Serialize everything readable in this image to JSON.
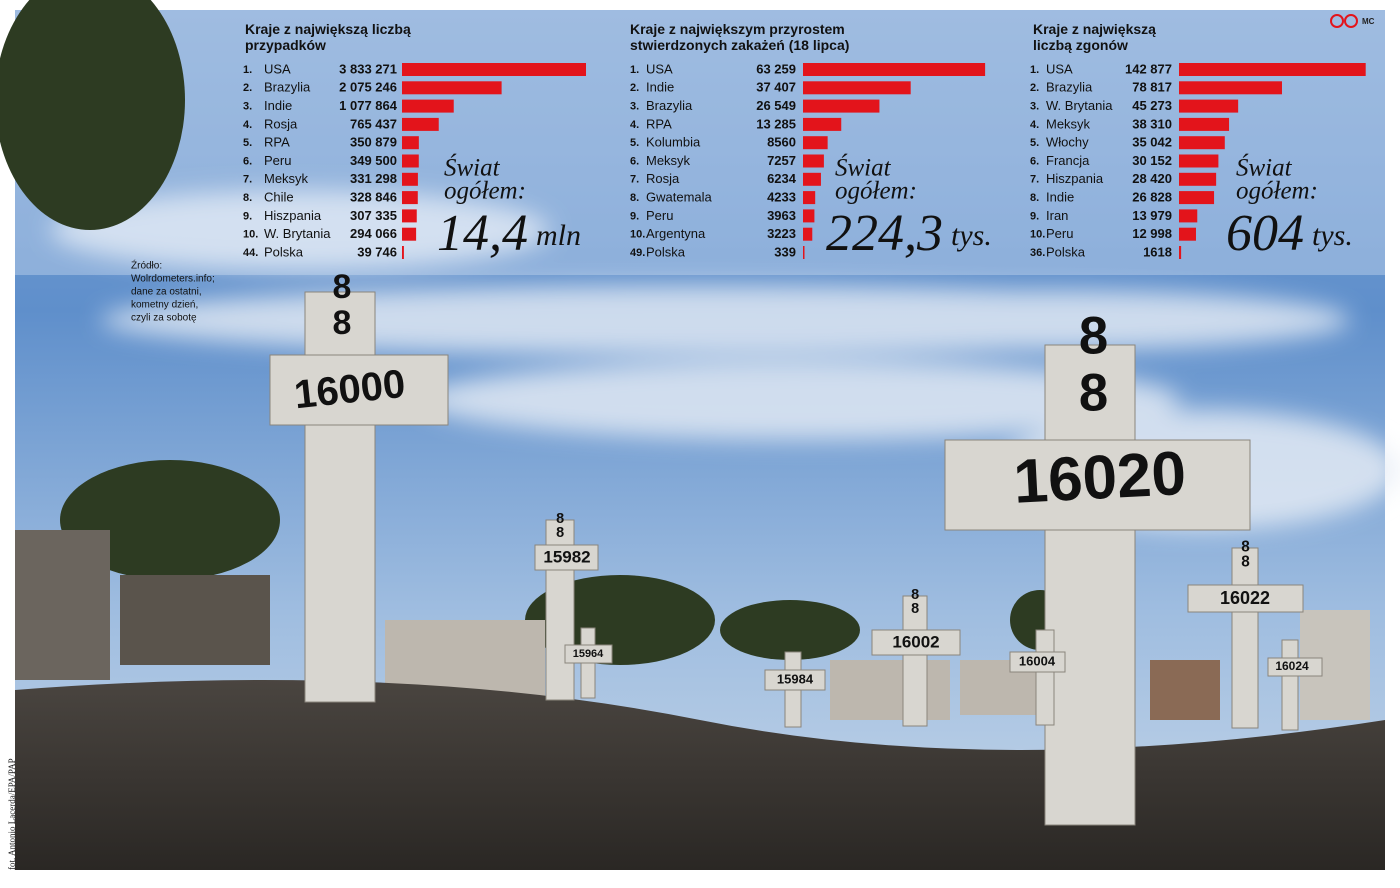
{
  "chart_data": [
    {
      "type": "bar",
      "orientation": "horizontal",
      "title": "Kraje z największą liczbą przypadków",
      "color": "#e3141b",
      "ranks": [
        "1.",
        "2.",
        "3.",
        "4.",
        "5.",
        "6.",
        "7.",
        "8.",
        "9.",
        "10.",
        "44."
      ],
      "categories": [
        "USA",
        "Brazylia",
        "Indie",
        "Rosja",
        "RPA",
        "Peru",
        "Meksyk",
        "Chile",
        "Hiszpania",
        "W. Brytania",
        "Polska"
      ],
      "values": [
        3833271,
        2075246,
        1077864,
        765437,
        350879,
        349500,
        331298,
        328846,
        307335,
        294066,
        39746
      ],
      "value_labels": [
        "3 833 271",
        "2 075 246",
        "1 077 864",
        "765 437",
        "350 879",
        "349 500",
        "331 298",
        "328 846",
        "307 335",
        "294 066",
        "39 746"
      ],
      "xlim": [
        0,
        4000000
      ],
      "total_caption": [
        "Świat",
        "ogółem:"
      ],
      "total": "14,4",
      "total_unit": "mln"
    },
    {
      "type": "bar",
      "orientation": "horizontal",
      "title": "Kraje z największym przyrostem stwierdzonych zakażeń (18 lipca)",
      "color": "#e3141b",
      "ranks": [
        "1.",
        "2.",
        "3.",
        "4.",
        "5.",
        "6.",
        "7.",
        "8.",
        "9.",
        "10.",
        "49."
      ],
      "categories": [
        "USA",
        "Indie",
        "Brazylia",
        "RPA",
        "Kolumbia",
        "Meksyk",
        "Rosja",
        "Gwatemala",
        "Peru",
        "Argentyna",
        "Polska"
      ],
      "values": [
        63259,
        37407,
        26549,
        13285,
        8560,
        7257,
        6234,
        4233,
        3963,
        3223,
        339
      ],
      "value_labels": [
        "63 259",
        "37 407",
        "26 549",
        "13 285",
        "8560",
        "7257",
        "6234",
        "4233",
        "3963",
        "3223",
        "339"
      ],
      "xlim": [
        0,
        66000
      ],
      "total_caption": [
        "Świat",
        "ogółem:"
      ],
      "total": "224,3",
      "total_unit": "tys."
    },
    {
      "type": "bar",
      "orientation": "horizontal",
      "title": "Kraje z największą liczbą zgonów",
      "color": "#e3141b",
      "ranks": [
        "1.",
        "2.",
        "3.",
        "4.",
        "5.",
        "6.",
        "7.",
        "8.",
        "9.",
        "10.",
        "36."
      ],
      "categories": [
        "USA",
        "Brazylia",
        "W. Brytania",
        "Meksyk",
        "Włochy",
        "Francja",
        "Hiszpania",
        "Indie",
        "Iran",
        "Peru",
        "Polska"
      ],
      "values": [
        142877,
        78817,
        45273,
        38310,
        35042,
        30152,
        28420,
        26828,
        13979,
        12998,
        1618
      ],
      "value_labels": [
        "142 877",
        "78 817",
        "45 273",
        "38 310",
        "35 042",
        "30 152",
        "28 420",
        "26 828",
        "13 979",
        "12 998",
        "1618"
      ],
      "xlim": [
        0,
        150000
      ],
      "total_caption": [
        "Świat",
        "ogółem:"
      ],
      "total": "604",
      "total_unit": "tys."
    }
  ],
  "source": [
    "Źródło:",
    "Wolrdometers.info;",
    "dane za ostatni,",
    "kometny dzień,",
    "czyli za sobotę"
  ],
  "author": "MC",
  "photo": {
    "credit": "fot. Antonio Lacerda/EPA/PAP",
    "crosses": [
      {
        "top": "88",
        "number": "16000"
      },
      {
        "top": "88",
        "number": "16020"
      },
      {
        "top": "88",
        "number": "15982"
      },
      {
        "top": "88",
        "number": "16002"
      },
      {
        "top": "88",
        "number": "16022"
      },
      {
        "number": "15984"
      },
      {
        "number": "16004"
      },
      {
        "number": "15964"
      },
      {
        "number": "16024"
      }
    ]
  }
}
